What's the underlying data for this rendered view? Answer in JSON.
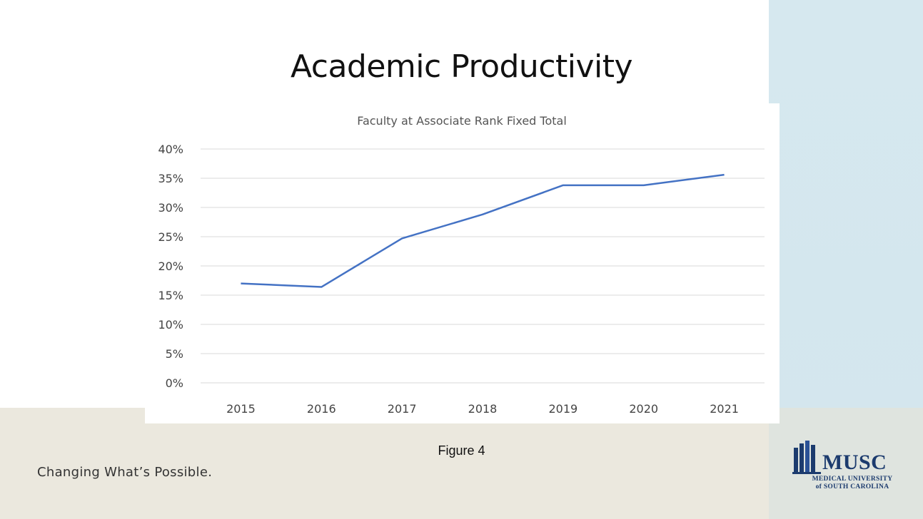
{
  "slide": {
    "title": "Academic Productivity",
    "caption": "Figure 4",
    "tagline": "Changing What’s Possible."
  },
  "logo": {
    "name": "MUSC",
    "subtitle_line1": "MEDICAL UNIVERSITY",
    "subtitle_line2": "of SOUTH CAROLINA",
    "icon": "building-icon"
  },
  "colors": {
    "line": "#4472c4",
    "brand": "#1c3b6e",
    "accent_band": "#d6e8ef",
    "footer_band": "#ebe8de"
  },
  "chart_data": {
    "type": "line",
    "title": "Faculty at Associate Rank Fixed Total",
    "xlabel": "",
    "ylabel": "",
    "categories": [
      "2015",
      "2016",
      "2017",
      "2018",
      "2019",
      "2020",
      "2021"
    ],
    "series": [
      {
        "values": [
          17,
          16.4,
          24.7,
          28.8,
          33.8,
          33.8,
          35.6
        ]
      }
    ],
    "ylim": [
      0,
      40
    ],
    "yticks": [
      0,
      5,
      10,
      15,
      20,
      25,
      30,
      35,
      40
    ],
    "ytick_labels": [
      "0%",
      "5%",
      "10%",
      "15%",
      "20%",
      "25%",
      "30%",
      "35%",
      "40%"
    ],
    "grid": true,
    "legend": "none"
  }
}
